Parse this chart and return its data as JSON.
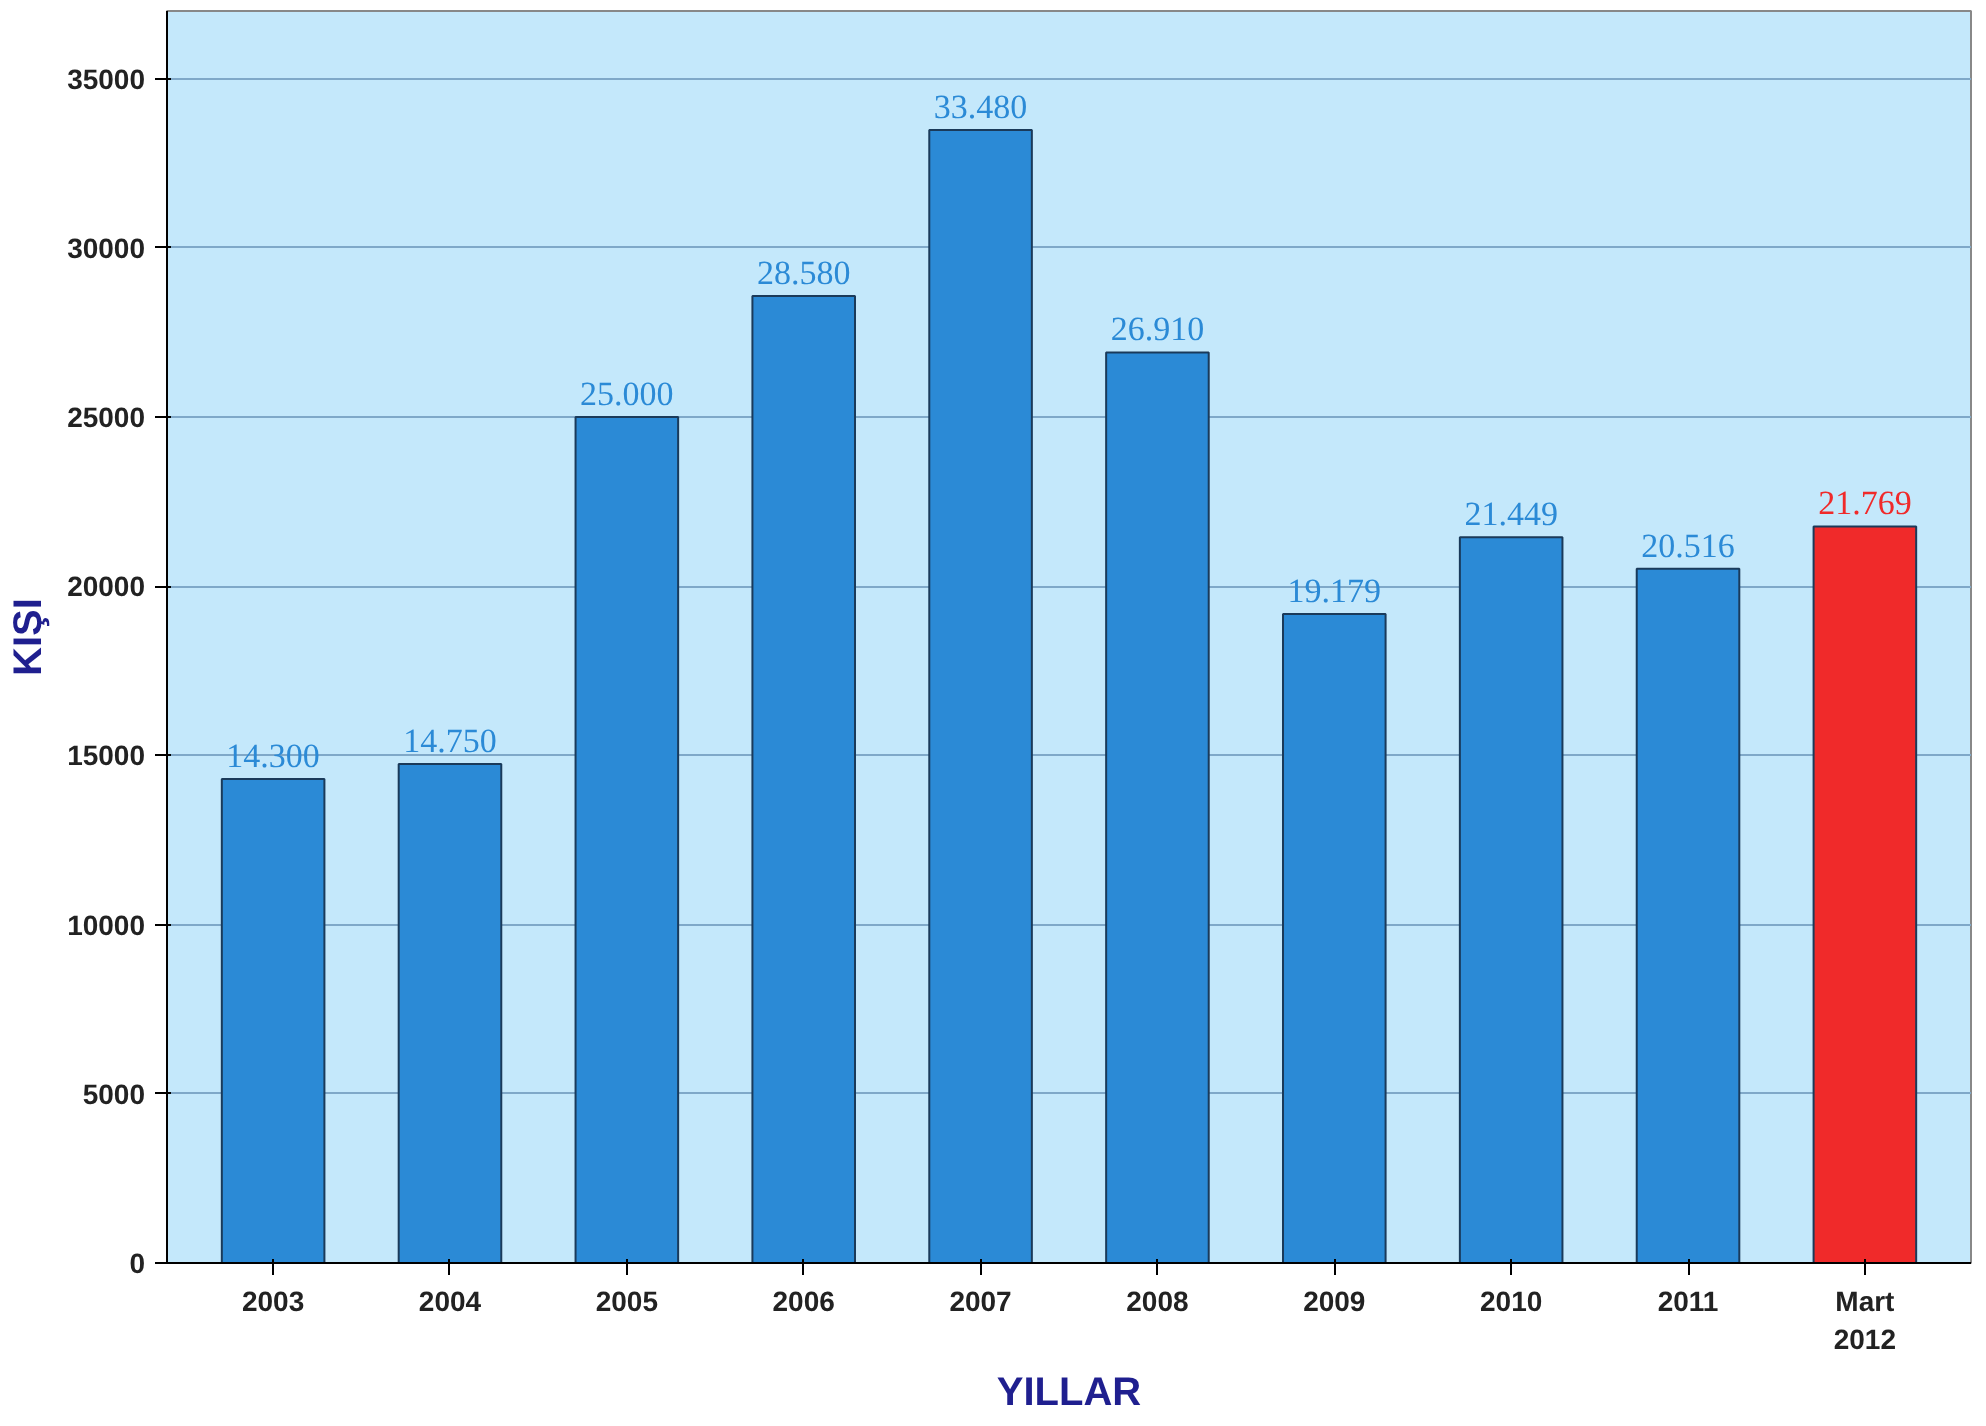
{
  "chart_data": {
    "type": "bar",
    "xlabel": "YILLAR",
    "ylabel": "KIŞI",
    "categories": [
      "2003",
      "2004",
      "2005",
      "2006",
      "2007",
      "2008",
      "2009",
      "2010",
      "2011",
      "Mart\n2012"
    ],
    "values": [
      14300,
      14750,
      25000,
      28580,
      33480,
      26910,
      19179,
      21449,
      20516,
      21769
    ],
    "colors": [
      "#2b8ad6",
      "#2b8ad6",
      "#2b8ad6",
      "#2b8ad6",
      "#2b8ad6",
      "#2b8ad6",
      "#2b8ad6",
      "#2b8ad6",
      "#2b8ad6",
      "#f02a2a"
    ],
    "value_labels": [
      "14.300",
      "14.750",
      "25.000",
      "28.580",
      "33.480",
      "26.910",
      "19.179",
      "21.449",
      "20.516",
      "21.769"
    ],
    "ylim": [
      0,
      37000
    ],
    "yticks": [
      0,
      5000,
      10000,
      15000,
      20000,
      25000,
      30000,
      35000
    ],
    "grid": "y"
  }
}
